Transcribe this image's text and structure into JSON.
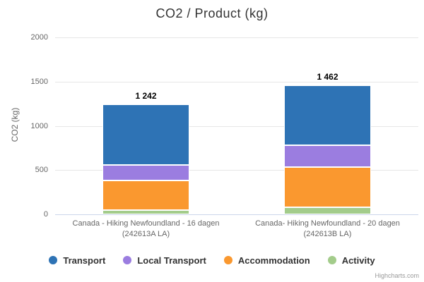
{
  "credits": "Highcharts.com",
  "chart_data": {
    "type": "bar",
    "stacked": true,
    "title": "CO2 / Product (kg)",
    "xlabel": "",
    "ylabel": "CO2 (kg)",
    "ylim": [
      0,
      2000
    ],
    "yticks": [
      0,
      500,
      1000,
      1500,
      2000
    ],
    "grid": true,
    "legend_position": "bottom",
    "categories": [
      "Canada - Hiking Newfoundland - 16 dagen",
      "Canada- Hiking Newfoundland - 20 dagen"
    ],
    "category_sublabels": [
      "(242613A LA)",
      "(242613B LA)"
    ],
    "series": [
      {
        "name": "Transport",
        "color": "#2e73b5",
        "values": [
          682,
          682
        ]
      },
      {
        "name": "Local Transport",
        "color": "#9b7de0",
        "values": [
          175,
          245
        ]
      },
      {
        "name": "Accommodation",
        "color": "#fa982f",
        "values": [
          340,
          455
        ]
      },
      {
        "name": "Activity",
        "color": "#a3cc8b",
        "values": [
          45,
          80
        ]
      }
    ],
    "stack_totals": [
      1242,
      1462
    ],
    "stack_totals_display": [
      "1 242",
      "1 462"
    ]
  }
}
